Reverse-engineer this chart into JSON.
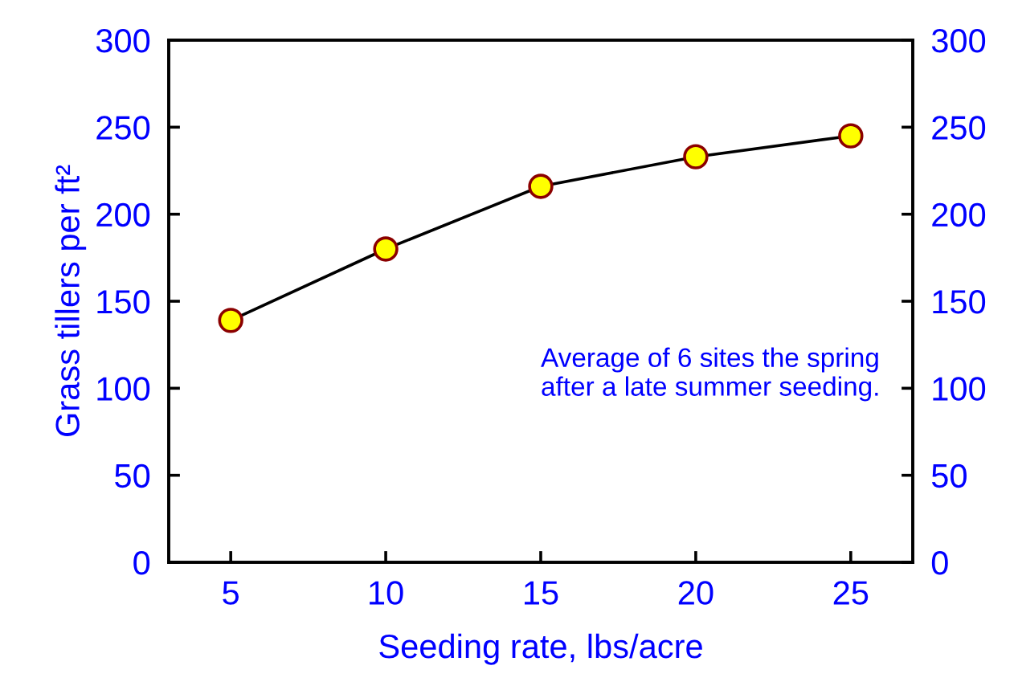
{
  "chart_data": {
    "type": "line",
    "xlabel": "Seeding rate, lbs/acre",
    "ylabel": "Grass tillers per ft²",
    "x": [
      5,
      10,
      15,
      20,
      25
    ],
    "series": [
      {
        "color": "#ffff00",
        "values": [
          139,
          180,
          216,
          233,
          245
        ]
      }
    ],
    "marker": "circle",
    "line_style": "solid",
    "grid": false,
    "legend": false,
    "xlim": [
      3,
      27
    ],
    "xticks": [
      5,
      10,
      15,
      20,
      25
    ],
    "ylim": [
      0,
      300
    ],
    "yticks": [
      0,
      50,
      100,
      150,
      200,
      250,
      300
    ],
    "y2lim": [
      0,
      300
    ],
    "y2ticks": [
      0,
      50,
      100,
      150,
      200,
      250,
      300
    ],
    "annotations": [
      "Average of 6 sites the spring\nafter a late summer seeding."
    ]
  }
}
